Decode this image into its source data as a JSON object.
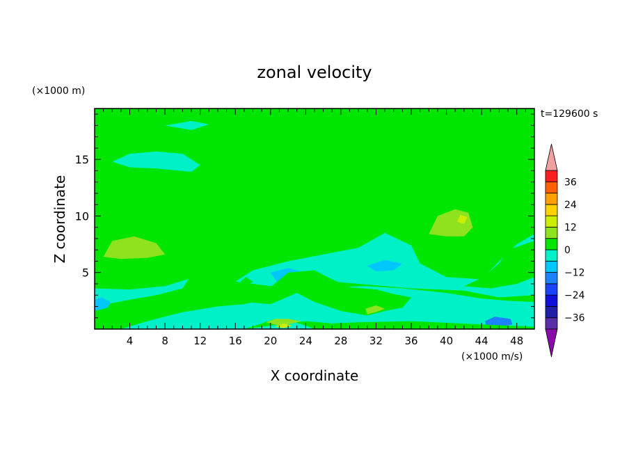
{
  "chart_data": {
    "type": "heatmap",
    "title": "zonal velocity",
    "time_label": "t=129600 s",
    "xlabel": "X coordinate",
    "ylabel": "Z coordinate",
    "x_scale_label": "(×1000 m/s)",
    "y_scale_label": "(×1000 m)",
    "xlim": [
      0,
      50
    ],
    "ylim": [
      0,
      19.5
    ],
    "x_ticks": [
      4,
      8,
      12,
      16,
      20,
      24,
      28,
      32,
      36,
      40,
      44,
      48
    ],
    "y_ticks": [
      5,
      10,
      15
    ],
    "colorbar": {
      "tick_labels": [
        "36",
        "24",
        "12",
        "0",
        "−12",
        "−24",
        "−36"
      ],
      "tick_values": [
        36,
        24,
        12,
        0,
        -12,
        -24,
        -36
      ],
      "levels_range": [
        -42,
        42
      ],
      "level_step": 6,
      "extend": "both"
    },
    "color_scale": [
      {
        "min": -42,
        "max": -36,
        "color": "#5a2ea6"
      },
      {
        "min": -36,
        "max": -30,
        "color": "#1f1fa8"
      },
      {
        "min": -30,
        "max": -24,
        "color": "#1010d8"
      },
      {
        "min": -24,
        "max": -18,
        "color": "#1a44ff"
      },
      {
        "min": -18,
        "max": -12,
        "color": "#1c82ff"
      },
      {
        "min": -12,
        "max": -6,
        "color": "#00c8ff"
      },
      {
        "min": -6,
        "max": 0,
        "color": "#00f0c8"
      },
      {
        "min": 0,
        "max": 6,
        "color": "#00e600"
      },
      {
        "min": 6,
        "max": 12,
        "color": "#8ee21e"
      },
      {
        "min": 12,
        "max": 18,
        "color": "#ccee00"
      },
      {
        "min": 18,
        "max": 24,
        "color": "#ffd200"
      },
      {
        "min": 24,
        "max": 30,
        "color": "#ffa000"
      },
      {
        "min": 30,
        "max": 36,
        "color": "#ff6000"
      },
      {
        "min": 36,
        "max": 42,
        "color": "#ff1e1e"
      }
    ],
    "extend_colors": {
      "low": "#8a0ca8",
      "high": "#f0a0a0"
    },
    "grid": false,
    "regions": [
      {
        "level": 0,
        "polygon": [
          [
            0,
            0
          ],
          [
            50,
            0
          ],
          [
            50,
            19.5
          ],
          [
            0,
            19.5
          ]
        ]
      },
      {
        "level": -3,
        "polygon": [
          [
            0,
            0
          ],
          [
            3,
            0
          ],
          [
            6,
            0.7
          ],
          [
            10,
            1.5
          ],
          [
            14,
            2
          ],
          [
            17,
            2.2
          ],
          [
            20,
            2.8
          ],
          [
            23,
            3.5
          ],
          [
            27,
            3.7
          ],
          [
            31,
            3.8
          ],
          [
            35,
            3.6
          ],
          [
            40,
            3.2
          ],
          [
            44,
            2.7
          ],
          [
            47,
            2.5
          ],
          [
            50,
            2.4
          ],
          [
            50,
            0
          ],
          [
            0,
            0
          ]
        ]
      },
      {
        "level": -3,
        "polygon": [
          [
            0,
            2
          ],
          [
            4,
            2.6
          ],
          [
            7,
            3
          ],
          [
            10,
            3.6
          ],
          [
            11,
            4.8
          ],
          [
            8,
            5.3
          ],
          [
            4,
            5
          ],
          [
            0,
            4.8
          ]
        ]
      },
      {
        "level": -3,
        "polygon": [
          [
            16,
            4.2
          ],
          [
            18,
            5.2
          ],
          [
            22,
            6
          ],
          [
            26,
            6.6
          ],
          [
            30,
            7.2
          ],
          [
            33,
            8.5
          ],
          [
            36,
            7.4
          ],
          [
            37,
            5.8
          ],
          [
            40,
            4.6
          ],
          [
            44,
            4.4
          ],
          [
            46,
            6
          ],
          [
            48,
            7.5
          ],
          [
            50,
            8.4
          ],
          [
            50,
            3
          ],
          [
            46,
            2.8
          ],
          [
            42,
            3.4
          ],
          [
            36,
            3.6
          ],
          [
            30,
            4
          ],
          [
            24,
            4.4
          ],
          [
            20,
            3.8
          ]
        ]
      },
      {
        "level": -3,
        "polygon": [
          [
            2,
            14.8
          ],
          [
            4,
            15.5
          ],
          [
            7,
            15.7
          ],
          [
            10,
            15.5
          ],
          [
            12,
            14.5
          ],
          [
            11,
            13.9
          ],
          [
            7,
            14.2
          ],
          [
            4,
            14.3
          ]
        ]
      },
      {
        "level": -3,
        "polygon": [
          [
            8,
            18
          ],
          [
            11,
            18.4
          ],
          [
            13,
            18.1
          ],
          [
            11,
            17.6
          ]
        ]
      },
      {
        "level": -9,
        "polygon": [
          [
            21,
            3.9
          ],
          [
            23,
            4.4
          ],
          [
            24,
            5
          ],
          [
            22,
            5.4
          ],
          [
            20,
            5
          ]
        ]
      },
      {
        "level": -9,
        "polygon": [
          [
            31,
            5.6
          ],
          [
            33,
            6.1
          ],
          [
            35,
            5.8
          ],
          [
            34,
            5.2
          ],
          [
            32,
            5.1
          ]
        ]
      },
      {
        "level": -9,
        "polygon": [
          [
            0,
            1.6
          ],
          [
            1.5,
            1.9
          ],
          [
            1.8,
            2.4
          ],
          [
            0.8,
            2.8
          ],
          [
            0,
            2.6
          ]
        ]
      },
      {
        "level": -15,
        "polygon": [
          [
            44.5,
            0.3
          ],
          [
            46,
            0.2
          ],
          [
            47.5,
            0.4
          ],
          [
            47.3,
            0.9
          ],
          [
            45.5,
            1.1
          ],
          [
            44.4,
            0.7
          ]
        ]
      },
      {
        "level": 3,
        "polygon": [
          [
            0,
            3.6
          ],
          [
            4,
            3.5
          ],
          [
            8,
            3.8
          ],
          [
            11,
            4.5
          ],
          [
            12,
            6
          ],
          [
            11,
            7
          ],
          [
            12,
            8.5
          ],
          [
            9,
            9.3
          ],
          [
            5,
            9.5
          ],
          [
            0,
            9.6
          ]
        ]
      },
      {
        "level": 3,
        "polygon": [
          [
            11,
            1.6
          ],
          [
            14,
            2.2
          ],
          [
            17,
            2.4
          ],
          [
            20,
            2.2
          ],
          [
            23,
            3.2
          ],
          [
            25,
            2.4
          ],
          [
            28,
            1.6
          ],
          [
            31,
            1.2
          ],
          [
            33,
            1.6
          ],
          [
            35,
            1.9
          ],
          [
            36,
            2.8
          ],
          [
            34,
            3.1
          ],
          [
            32,
            3.5
          ],
          [
            29,
            3.7
          ],
          [
            27,
            4.4
          ],
          [
            25,
            5.2
          ],
          [
            22,
            5
          ],
          [
            20,
            3.7
          ],
          [
            18,
            3.4
          ],
          [
            16,
            4
          ],
          [
            14,
            4.2
          ],
          [
            13,
            3.5
          ],
          [
            12,
            2.6
          ]
        ]
      },
      {
        "level": 3,
        "polygon": [
          [
            17,
            0
          ],
          [
            19,
            0.5
          ],
          [
            20.5,
            0.9
          ],
          [
            22,
            0.8
          ],
          [
            24,
            0.3
          ],
          [
            25,
            0
          ],
          [
            50,
            0
          ],
          [
            50,
            0.2
          ],
          [
            36,
            0.7
          ],
          [
            30,
            0.6
          ],
          [
            27,
            0.5
          ],
          [
            24,
            0.7
          ]
        ]
      },
      {
        "level": 3,
        "polygon": [
          [
            34,
            8.6
          ],
          [
            36,
            10
          ],
          [
            38,
            11.6
          ],
          [
            40,
            12.4
          ],
          [
            42.5,
            12.6
          ],
          [
            45,
            12.2
          ],
          [
            48,
            11
          ],
          [
            49,
            9.8
          ],
          [
            48,
            8.8
          ],
          [
            46,
            8.2
          ],
          [
            44,
            7.4
          ],
          [
            41,
            7.2
          ],
          [
            38,
            7.4
          ],
          [
            36,
            7.8
          ]
        ]
      },
      {
        "level": 3,
        "polygon": [
          [
            42,
            3.8
          ],
          [
            44,
            4.5
          ],
          [
            46,
            5.8
          ],
          [
            47,
            7
          ],
          [
            50,
            7.8
          ],
          [
            50,
            4.6
          ],
          [
            48,
            4
          ],
          [
            45,
            3.6
          ]
        ]
      },
      {
        "level": 3,
        "polygon": [
          [
            17,
            3.7
          ],
          [
            18,
            4.2
          ],
          [
            17.2,
            4.6
          ],
          [
            16.6,
            4.2
          ]
        ]
      },
      {
        "level": 3,
        "polygon": [
          [
            12.2,
            5.2
          ],
          [
            13.2,
            5.5
          ],
          [
            13.4,
            6
          ],
          [
            12.6,
            6.2
          ],
          [
            12,
            5.8
          ]
        ]
      },
      {
        "level": 3,
        "polygon": [
          [
            35.5,
            17.2
          ],
          [
            38,
            17.6
          ],
          [
            41,
            17.6
          ],
          [
            40,
            17
          ],
          [
            37,
            16.9
          ]
        ]
      },
      {
        "level": 9,
        "polygon": [
          [
            1,
            6.4
          ],
          [
            3,
            6.2
          ],
          [
            6,
            6.3
          ],
          [
            8,
            6.6
          ],
          [
            7,
            7.6
          ],
          [
            4.5,
            8.2
          ],
          [
            2,
            7.8
          ]
        ]
      },
      {
        "level": 9,
        "polygon": [
          [
            19.5,
            0.6
          ],
          [
            21,
            0.3
          ],
          [
            22.5,
            0.5
          ],
          [
            23.5,
            0.7
          ],
          [
            22,
            0.9
          ],
          [
            20.5,
            0.9
          ]
        ]
      },
      {
        "level": 9,
        "polygon": [
          [
            31,
            1.3
          ],
          [
            32,
            1.5
          ],
          [
            33,
            1.8
          ],
          [
            32,
            2.1
          ],
          [
            30.8,
            1.8
          ]
        ]
      },
      {
        "level": 9,
        "polygon": [
          [
            38,
            8.4
          ],
          [
            40,
            8.2
          ],
          [
            42,
            8.2
          ],
          [
            43,
            9
          ],
          [
            42.5,
            10.3
          ],
          [
            41,
            10.6
          ],
          [
            39,
            10
          ]
        ]
      },
      {
        "level": 15,
        "polygon": [
          [
            20.5,
            0.2
          ],
          [
            21.5,
            0.1
          ],
          [
            22.5,
            0.3
          ],
          [
            21.5,
            0.5
          ]
        ]
      },
      {
        "level": 15,
        "polygon": [
          [
            41.2,
            9.5
          ],
          [
            42,
            9.3
          ],
          [
            42.4,
            9.9
          ],
          [
            41.6,
            10.1
          ]
        ]
      }
    ]
  }
}
